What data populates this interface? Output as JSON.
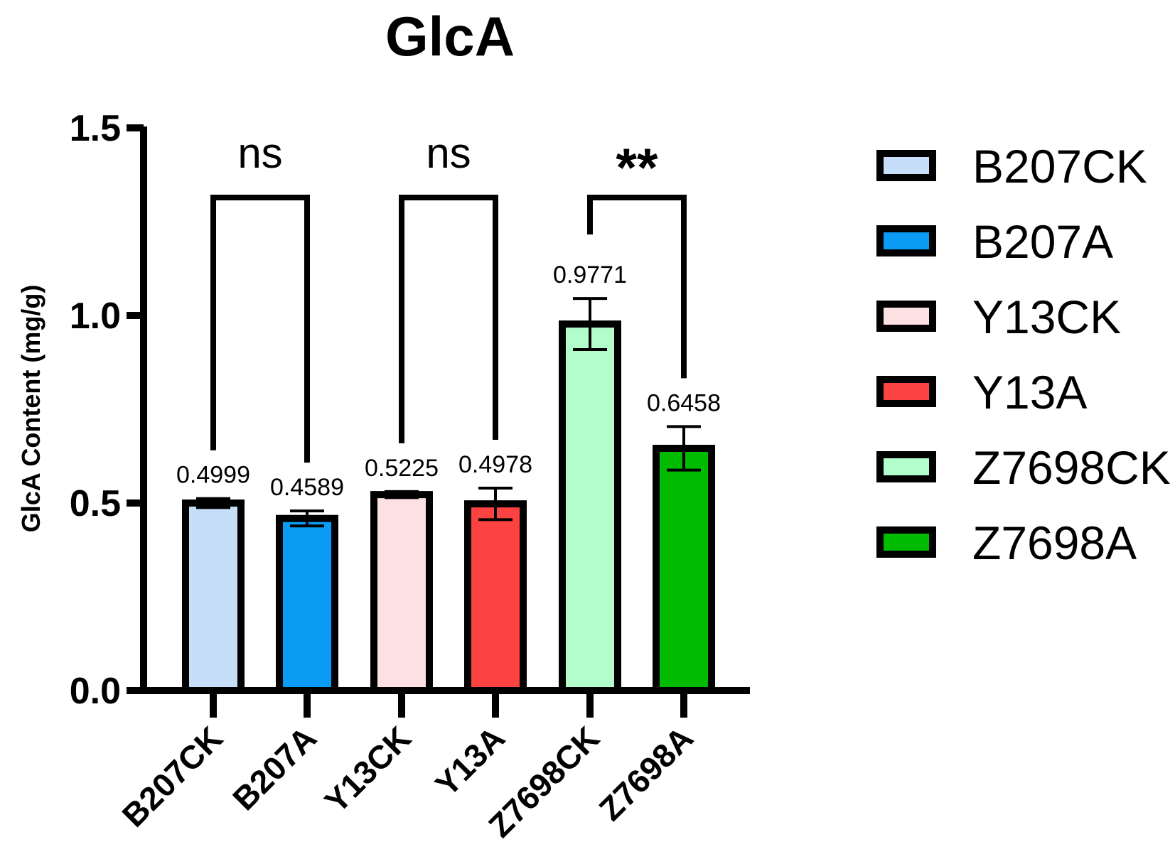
{
  "chart_data": {
    "type": "bar",
    "title": "GlcA",
    "xlabel": "",
    "ylabel": "GlcA Content (mg/g)",
    "ylim": [
      0,
      1.5
    ],
    "yticks": [
      "0.0",
      "0.5",
      "1.0",
      "1.5"
    ],
    "ytick_values": [
      0,
      0.5,
      1.0,
      1.5
    ],
    "categories": [
      "B207CK",
      "B207A",
      "Y13CK",
      "Y13A",
      "Z7698CK",
      "Z7698A"
    ],
    "values": [
      0.4999,
      0.4589,
      0.5225,
      0.4978,
      0.9771,
      0.6458
    ],
    "value_labels": [
      "0.4999",
      "0.4589",
      "0.5225",
      "0.4978",
      "0.9771",
      "0.6458"
    ],
    "errors": [
      0.012,
      0.02,
      0.008,
      0.042,
      0.068,
      0.058
    ],
    "colors": [
      "#c6def8",
      "#0a9cf4",
      "#fde1e2",
      "#fd4242",
      "#b3fccb",
      "#00bb00"
    ],
    "grid": false,
    "legend": {
      "position": "right",
      "entries": [
        "B207CK",
        "B207A",
        "Y13CK",
        "Y13A",
        "Z7698CK",
        "Z7698A"
      ]
    },
    "comparisons": [
      {
        "from": "B207CK",
        "to": "B207A",
        "label": "ns"
      },
      {
        "from": "Y13CK",
        "to": "Y13A",
        "label": "ns"
      },
      {
        "from": "Z7698CK",
        "to": "Z7698A",
        "label": "**"
      }
    ]
  }
}
